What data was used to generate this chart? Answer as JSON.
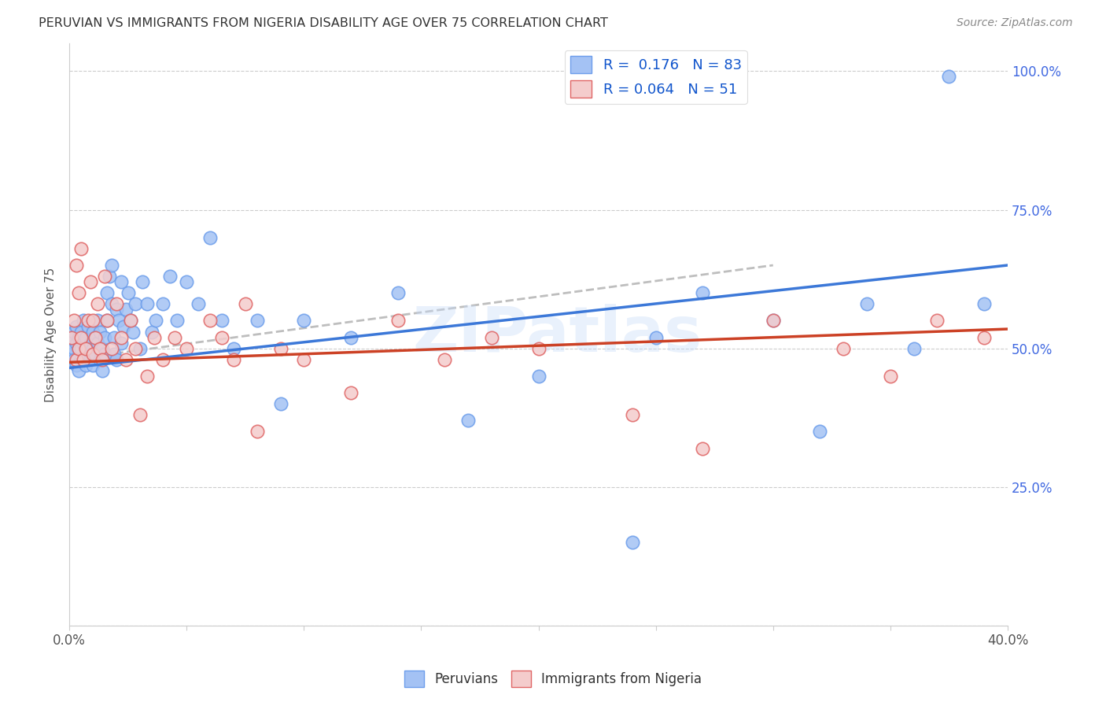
{
  "title": "PERUVIAN VS IMMIGRANTS FROM NIGERIA DISABILITY AGE OVER 75 CORRELATION CHART",
  "source": "Source: ZipAtlas.com",
  "ylabel": "Disability Age Over 75",
  "peruvian_R": 0.176,
  "peruvian_N": 83,
  "nigeria_R": 0.064,
  "nigeria_N": 51,
  "peruvian_color": "#a4c2f4",
  "nigeria_color": "#f4cccc",
  "peruvian_edge_color": "#6d9eeb",
  "nigeria_edge_color": "#e06666",
  "peruvian_line_color": "#3c78d8",
  "nigeria_line_color": "#cc4125",
  "dash_color": "#b7b7b7",
  "watermark": "ZIPatlas",
  "xlim": [
    0.0,
    0.4
  ],
  "ylim": [
    0.0,
    1.05
  ],
  "peruvian_scatter_x": [
    0.001,
    0.001,
    0.002,
    0.002,
    0.002,
    0.003,
    0.003,
    0.003,
    0.004,
    0.004,
    0.004,
    0.005,
    0.005,
    0.005,
    0.006,
    0.006,
    0.007,
    0.007,
    0.007,
    0.008,
    0.008,
    0.009,
    0.009,
    0.01,
    0.01,
    0.01,
    0.011,
    0.011,
    0.012,
    0.012,
    0.013,
    0.013,
    0.014,
    0.014,
    0.015,
    0.015,
    0.016,
    0.016,
    0.017,
    0.018,
    0.018,
    0.019,
    0.019,
    0.02,
    0.02,
    0.021,
    0.022,
    0.022,
    0.023,
    0.024,
    0.025,
    0.026,
    0.027,
    0.028,
    0.03,
    0.031,
    0.033,
    0.035,
    0.037,
    0.04,
    0.043,
    0.046,
    0.05,
    0.055,
    0.06,
    0.065,
    0.07,
    0.08,
    0.09,
    0.1,
    0.12,
    0.14,
    0.17,
    0.2,
    0.24,
    0.27,
    0.3,
    0.32,
    0.34,
    0.36,
    0.375,
    0.39,
    0.25
  ],
  "peruvian_scatter_y": [
    0.49,
    0.52,
    0.5,
    0.48,
    0.53,
    0.51,
    0.47,
    0.54,
    0.5,
    0.52,
    0.46,
    0.5,
    0.53,
    0.48,
    0.55,
    0.51,
    0.49,
    0.52,
    0.47,
    0.5,
    0.54,
    0.51,
    0.48,
    0.5,
    0.53,
    0.47,
    0.52,
    0.49,
    0.51,
    0.55,
    0.48,
    0.53,
    0.5,
    0.46,
    0.52,
    0.49,
    0.6,
    0.55,
    0.63,
    0.58,
    0.65,
    0.52,
    0.49,
    0.57,
    0.48,
    0.55,
    0.51,
    0.62,
    0.54,
    0.57,
    0.6,
    0.55,
    0.53,
    0.58,
    0.5,
    0.62,
    0.58,
    0.53,
    0.55,
    0.58,
    0.63,
    0.55,
    0.62,
    0.58,
    0.7,
    0.55,
    0.5,
    0.55,
    0.4,
    0.55,
    0.52,
    0.6,
    0.37,
    0.45,
    0.15,
    0.6,
    0.55,
    0.35,
    0.58,
    0.5,
    0.99,
    0.58,
    0.52
  ],
  "nigeria_scatter_x": [
    0.001,
    0.002,
    0.003,
    0.003,
    0.004,
    0.004,
    0.005,
    0.006,
    0.007,
    0.008,
    0.009,
    0.01,
    0.01,
    0.011,
    0.012,
    0.013,
    0.014,
    0.015,
    0.016,
    0.018,
    0.02,
    0.022,
    0.024,
    0.026,
    0.028,
    0.03,
    0.033,
    0.036,
    0.04,
    0.045,
    0.05,
    0.06,
    0.065,
    0.07,
    0.075,
    0.08,
    0.09,
    0.1,
    0.12,
    0.14,
    0.16,
    0.18,
    0.2,
    0.24,
    0.27,
    0.3,
    0.33,
    0.35,
    0.37,
    0.39,
    0.005
  ],
  "nigeria_scatter_y": [
    0.52,
    0.55,
    0.48,
    0.65,
    0.5,
    0.6,
    0.52,
    0.48,
    0.5,
    0.55,
    0.62,
    0.49,
    0.55,
    0.52,
    0.58,
    0.5,
    0.48,
    0.63,
    0.55,
    0.5,
    0.58,
    0.52,
    0.48,
    0.55,
    0.5,
    0.38,
    0.45,
    0.52,
    0.48,
    0.52,
    0.5,
    0.55,
    0.52,
    0.48,
    0.58,
    0.35,
    0.5,
    0.48,
    0.42,
    0.55,
    0.48,
    0.52,
    0.5,
    0.38,
    0.32,
    0.55,
    0.5,
    0.45,
    0.55,
    0.52,
    0.68
  ],
  "blue_line_x": [
    0.0,
    0.4
  ],
  "blue_line_y": [
    0.465,
    0.65
  ],
  "pink_line_x": [
    0.0,
    0.4
  ],
  "pink_line_y": [
    0.475,
    0.535
  ],
  "dash_line_x": [
    0.0,
    0.3
  ],
  "dash_line_y": [
    0.48,
    0.65
  ]
}
